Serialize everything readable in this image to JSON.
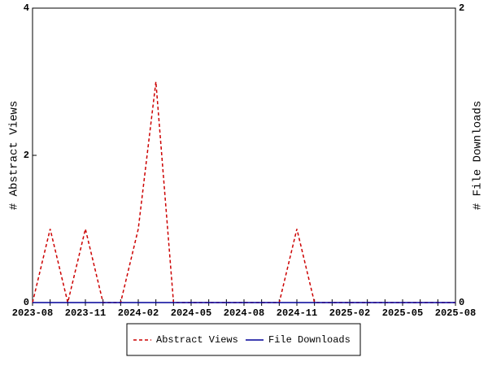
{
  "chart_data": {
    "type": "line",
    "categories": [
      "2023-08",
      null,
      null,
      "2023-11",
      null,
      null,
      "2024-02",
      null,
      null,
      "2024-05",
      null,
      null,
      "2024-08",
      null,
      null,
      "2024-11",
      null,
      null,
      "2025-02",
      null,
      null,
      "2025-05",
      null,
      null,
      "2025-08"
    ],
    "y_label": "# Abstract Views",
    "y2_label": "# File Downloads",
    "ylim": [
      0,
      4
    ],
    "yticks": [
      0,
      2,
      4
    ],
    "y2lim": [
      0,
      2
    ],
    "y2ticks": [
      0,
      2
    ],
    "legend": "bottom",
    "series": [
      {
        "name": "Abstract Views",
        "color": "#cc0000",
        "dash": true,
        "values": [
          0,
          1,
          0,
          1,
          0,
          0,
          1,
          3,
          0,
          0,
          0,
          0,
          0,
          0,
          0,
          1,
          0,
          0,
          0,
          0,
          0,
          0,
          0,
          0,
          0
        ]
      },
      {
        "name": "File Downloads",
        "color": "#000099",
        "dash": false,
        "axis": "y2",
        "values": [
          0,
          0,
          0,
          0,
          0,
          0,
          0,
          0,
          0,
          0,
          0,
          0,
          0,
          0,
          0,
          0,
          0,
          0,
          0,
          0,
          0,
          0,
          0,
          0,
          0
        ]
      }
    ]
  }
}
